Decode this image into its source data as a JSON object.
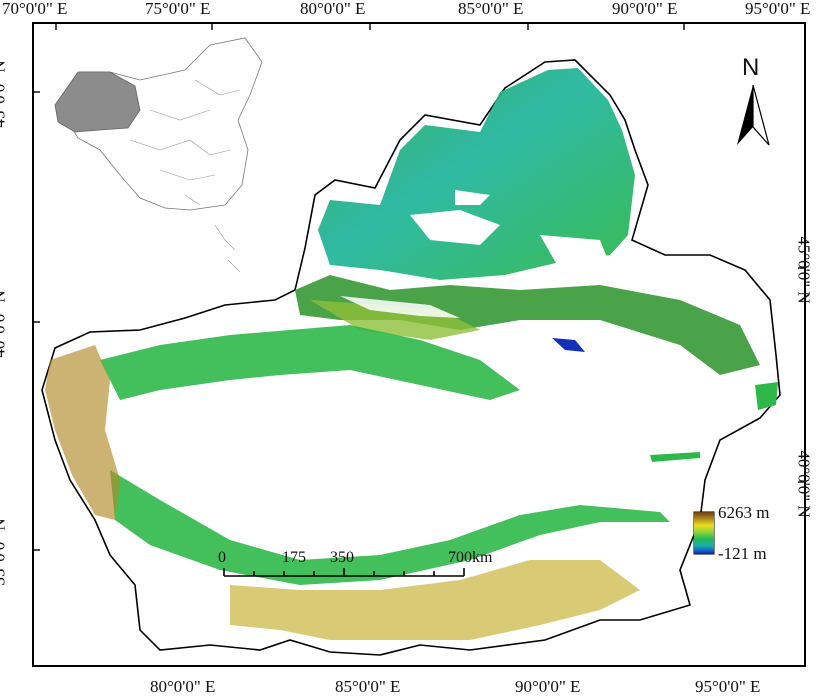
{
  "top_axis": [
    "70°0'0\" E",
    "75°0'0\" E",
    "80°0'0\" E",
    "85°0'0\" E",
    "90°0'0\" E",
    "95°0'0\" E"
  ],
  "bottom_axis": [
    "80°0'0\" E",
    "85°0'0\" E",
    "90°0'0\" E",
    "95°0'0\" E"
  ],
  "left_axis": [
    "45°0'0\" N",
    "40°0'0\" N",
    "35°0'0\" N"
  ],
  "right_axis": [
    "45°0'0\" N",
    "40°0'0\" N"
  ],
  "north_arrow": {
    "label": "N"
  },
  "legend": {
    "max_label": "6263 m",
    "min_label": "-121 m",
    "colors": [
      "#6b3a10",
      "#a8841c",
      "#e9e01e",
      "#7fd13b",
      "#1fb85a",
      "#1ab0a8",
      "#1660c8",
      "#0a1ea8"
    ]
  },
  "scale_bar": {
    "ticks": [
      "0",
      "175",
      "350",
      "700km"
    ]
  },
  "colors": {
    "accent_green": "#2fb84a",
    "accent_teal": "#25b6a0",
    "mountain_brown": "#8a6b2a",
    "lake_blue": "#1230b8"
  }
}
